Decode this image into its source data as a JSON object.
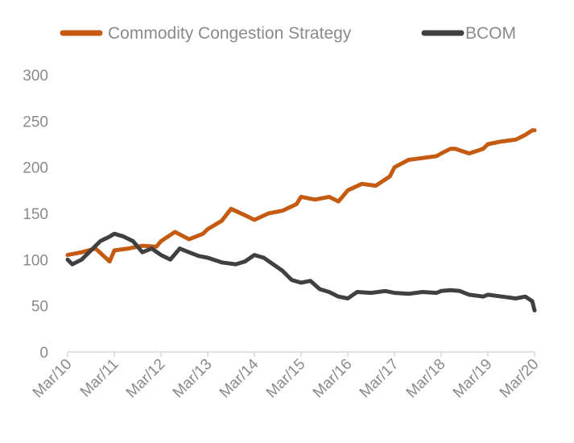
{
  "chart_data": {
    "type": "line",
    "title": "",
    "xlabel": "",
    "ylabel": "",
    "ylim": [
      0,
      300
    ],
    "yticks": [
      0,
      50,
      100,
      150,
      200,
      250,
      300
    ],
    "grid": false,
    "legend_position": "top",
    "x_tick_labels": [
      "Mar/10",
      "Mar/11",
      "Mar/12",
      "Mar/13",
      "Mar/14",
      "Mar/15",
      "Mar/16",
      "Mar/17",
      "Mar/18",
      "Mar/19",
      "Mar/20"
    ],
    "x_range": [
      2010,
      2020
    ],
    "series": [
      {
        "name": "Commodity Congestion Strategy",
        "color": "#c55a11",
        "x": [
          2010.0,
          2010.3,
          2010.6,
          2010.9,
          2011.0,
          2011.3,
          2011.6,
          2011.9,
          2012.0,
          2012.3,
          2012.6,
          2012.9,
          2013.0,
          2013.3,
          2013.5,
          2013.8,
          2014.0,
          2014.3,
          2014.6,
          2014.9,
          2015.0,
          2015.3,
          2015.6,
          2015.8,
          2016.0,
          2016.3,
          2016.6,
          2016.9,
          2017.0,
          2017.3,
          2017.6,
          2017.9,
          2018.0,
          2018.2,
          2018.3,
          2018.6,
          2018.9,
          2019.0,
          2019.3,
          2019.6,
          2019.8,
          2019.95,
          2020.0
        ],
        "values": [
          105,
          108,
          112,
          98,
          110,
          112,
          115,
          114,
          120,
          130,
          122,
          128,
          133,
          142,
          155,
          148,
          143,
          150,
          153,
          160,
          168,
          165,
          168,
          163,
          175,
          182,
          180,
          190,
          200,
          208,
          210,
          212,
          215,
          220,
          220,
          215,
          220,
          225,
          228,
          230,
          235,
          240,
          240
        ]
      },
      {
        "name": "BCOM",
        "color": "#404040",
        "x": [
          2010.0,
          2010.1,
          2010.3,
          2010.5,
          2010.7,
          2010.9,
          2011.0,
          2011.2,
          2011.4,
          2011.6,
          2011.8,
          2012.0,
          2012.2,
          2012.4,
          2012.6,
          2012.8,
          2013.0,
          2013.3,
          2013.6,
          2013.8,
          2014.0,
          2014.2,
          2014.4,
          2014.6,
          2014.8,
          2015.0,
          2015.2,
          2015.4,
          2015.6,
          2015.8,
          2016.0,
          2016.2,
          2016.5,
          2016.8,
          2017.0,
          2017.3,
          2017.6,
          2017.9,
          2018.0,
          2018.2,
          2018.4,
          2018.6,
          2018.9,
          2019.0,
          2019.3,
          2019.6,
          2019.8,
          2019.95,
          2020.0
        ],
        "values": [
          100,
          95,
          100,
          110,
          120,
          125,
          128,
          125,
          120,
          108,
          112,
          105,
          100,
          112,
          108,
          104,
          102,
          97,
          95,
          98,
          105,
          102,
          95,
          88,
          78,
          75,
          77,
          68,
          65,
          60,
          58,
          65,
          64,
          66,
          64,
          63,
          65,
          64,
          66,
          67,
          66,
          62,
          60,
          62,
          60,
          58,
          60,
          55,
          45
        ]
      }
    ]
  }
}
